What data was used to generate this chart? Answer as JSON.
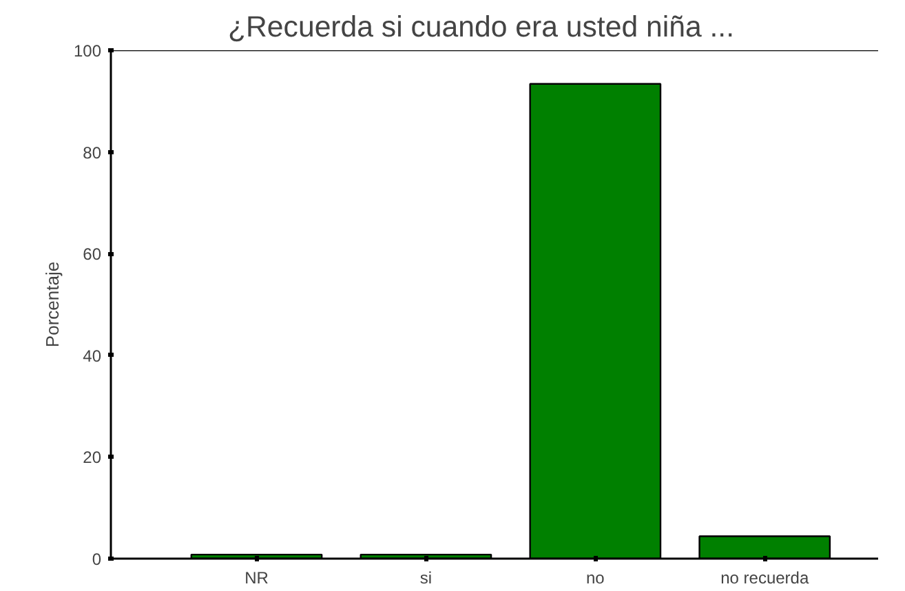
{
  "chart_data": {
    "type": "bar",
    "title": "¿Recuerda si cuando era usted niña ...",
    "ylabel": "Porcentaje",
    "categories": [
      "NR",
      "si",
      "no",
      "no recuerda"
    ],
    "values": [
      0.8,
      0.8,
      93.4,
      4.4
    ],
    "color": "#008000",
    "ylim": [
      0,
      100
    ],
    "yticks": [
      0,
      20,
      40,
      60,
      80,
      100
    ],
    "grid": false
  }
}
